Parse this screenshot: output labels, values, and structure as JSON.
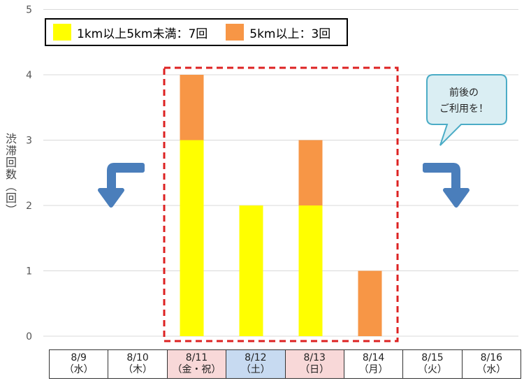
{
  "chart_data": {
    "type": "bar",
    "stacked": true,
    "categories": [
      "8/9",
      "8/10",
      "8/11",
      "8/12",
      "8/13",
      "8/14",
      "8/15",
      "8/16"
    ],
    "weekdays": [
      "（水）",
      "（木）",
      "（金・祝）",
      "（土）",
      "（日）",
      "（月）",
      "（火）",
      "（水）"
    ],
    "day_colors": [
      "default",
      "default",
      "holiday",
      "saturday",
      "holiday",
      "default",
      "default",
      "default"
    ],
    "series": [
      {
        "name": "1km以上5km未満：7回",
        "color": "#ffff00",
        "values": [
          0,
          0,
          3,
          2,
          2,
          0,
          0,
          0
        ]
      },
      {
        "name": "5km以上：3回",
        "color": "#f79646",
        "values": [
          0,
          0,
          1,
          0,
          1,
          1,
          0,
          0
        ]
      }
    ],
    "ylabel": "渋滞回数（回）",
    "ylim": [
      0,
      5
    ],
    "yticks": [
      "0",
      "1",
      "2",
      "3",
      "4",
      "5"
    ],
    "grid": true,
    "legend_position": "top-left",
    "highlight_range": [
      "8/11",
      "8/14"
    ],
    "annotation": "前後の\nご利用を！"
  },
  "colors": {
    "highlight_border": "#dd2222",
    "arrow": "#4a7ebb",
    "bubble_fill": "#daeef3",
    "bubble_border": "#4bacc6",
    "grid": "#d9d9d9"
  }
}
